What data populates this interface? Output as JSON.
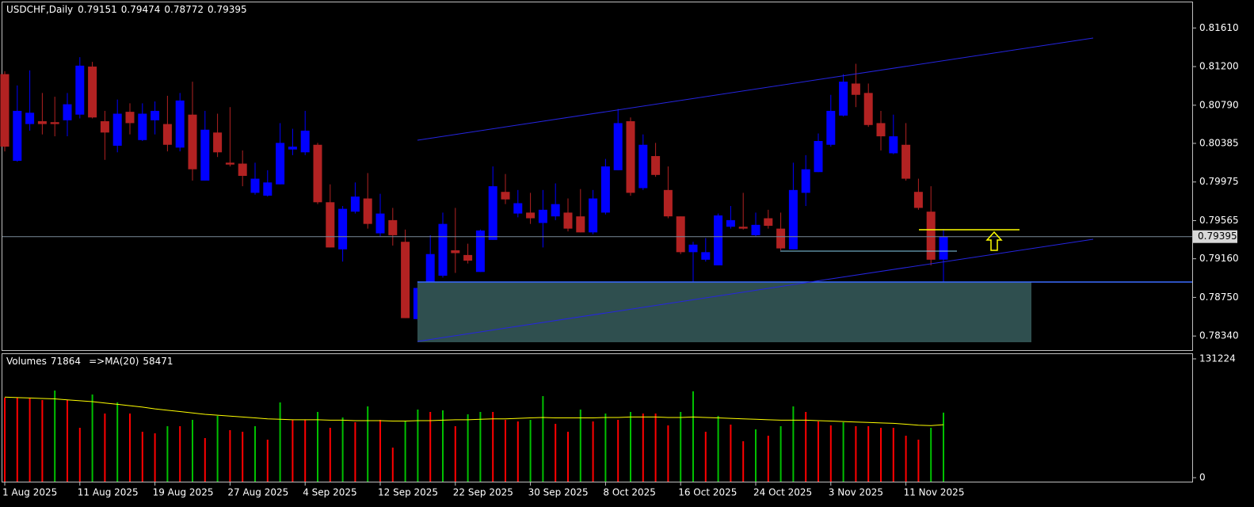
{
  "chart_data": [
    {
      "type": "candlestick",
      "title": "USDCHF,Daily",
      "categories": [
        "1 Aug 2025",
        null,
        null,
        null,
        null,
        null,
        "11 Aug 2025",
        null,
        null,
        null,
        null,
        null,
        "19 Aug 2025",
        null,
        null,
        null,
        null,
        null,
        "27 Aug 2025",
        null,
        null,
        null,
        null,
        null,
        "4 Sep 2025",
        null,
        null,
        null,
        null,
        null,
        "12 Sep 2025",
        null,
        null,
        null,
        null,
        null,
        "22 Sep 2025",
        null,
        null,
        null,
        null,
        null,
        "30 Sep 2025",
        null,
        null,
        null,
        null,
        null,
        "8 Oct 2025",
        null,
        null,
        null,
        null,
        null,
        "16 Oct 2025",
        null,
        null,
        null,
        null,
        null,
        "24 Oct 2025",
        null,
        null,
        null,
        null,
        null,
        "3 Nov 2025",
        null,
        null,
        null,
        null,
        null,
        "11 Nov 2025",
        null,
        null,
        null
      ],
      "open": [
        0.8112,
        0.802,
        0.8059,
        0.8062,
        0.8061,
        0.8063,
        0.8069,
        0.812,
        0.8062,
        0.8036,
        0.8072,
        0.8042,
        0.8063,
        0.8059,
        0.8034,
        0.8069,
        0.7999,
        0.805,
        0.8018,
        0.8017,
        0.7986,
        0.7983,
        0.7995,
        0.8032,
        0.8029,
        0.8037,
        0.7976,
        0.7926,
        0.7966,
        0.798,
        0.7943,
        0.7957,
        0.7934,
        0.7852,
        0.7873,
        0.7898,
        0.7925,
        0.792,
        0.7902,
        0.7936,
        0.7987,
        0.7964,
        0.7965,
        0.7954,
        0.7961,
        0.7965,
        0.7961,
        0.7944,
        0.7965,
        0.801,
        0.8062,
        0.7991,
        0.8025,
        0.7989,
        0.7961,
        0.7923,
        0.7915,
        0.7909,
        0.795,
        0.795,
        0.7941,
        0.7959,
        0.7948,
        0.7926,
        0.7986,
        0.8008,
        0.8037,
        0.8068,
        0.8102,
        0.8092,
        0.806,
        0.8028,
        0.8037,
        0.7987,
        0.7966,
        0.79151
      ],
      "high": [
        0.8115,
        0.81,
        0.8116,
        0.8092,
        0.8088,
        0.8092,
        0.813,
        0.8125,
        0.8073,
        0.8085,
        0.8081,
        0.8081,
        0.8083,
        0.8089,
        0.8092,
        0.8104,
        0.8073,
        0.807,
        0.8077,
        0.8031,
        0.8018,
        0.801,
        0.806,
        0.8054,
        0.8073,
        0.8039,
        0.7995,
        0.7972,
        0.7997,
        0.8007,
        0.7985,
        0.797,
        0.7947,
        0.7892,
        0.7941,
        0.7965,
        0.797,
        0.7932,
        0.7947,
        0.8014,
        0.8006,
        0.7989,
        0.7986,
        0.7989,
        0.7996,
        0.798,
        0.799,
        0.7989,
        0.8022,
        0.8075,
        0.8066,
        0.8048,
        0.8039,
        0.8014,
        0.7961,
        0.7934,
        0.7938,
        0.7964,
        0.7972,
        0.7986,
        0.7965,
        0.7968,
        0.7965,
        0.8018,
        0.8026,
        0.8049,
        0.809,
        0.8112,
        0.8123,
        0.8102,
        0.8073,
        0.8069,
        0.806,
        0.8001,
        0.7993,
        0.79474
      ],
      "low": [
        0.803,
        0.8019,
        0.8052,
        0.8048,
        0.8046,
        0.8046,
        0.8065,
        0.8065,
        0.8021,
        0.8029,
        0.8048,
        0.8041,
        0.8048,
        0.803,
        0.803,
        0.7999,
        0.7999,
        0.8024,
        0.8014,
        0.7993,
        0.7984,
        0.7982,
        0.7995,
        0.8026,
        0.8026,
        0.7974,
        0.7928,
        0.7913,
        0.7964,
        0.7948,
        0.794,
        0.793,
        0.7853,
        0.785,
        0.7871,
        0.7896,
        0.7901,
        0.7911,
        0.7902,
        0.7936,
        0.7974,
        0.796,
        0.7953,
        0.7928,
        0.7957,
        0.7945,
        0.7944,
        0.7942,
        0.7963,
        0.801,
        0.7983,
        0.7989,
        0.8003,
        0.7959,
        0.7921,
        0.7871,
        0.7913,
        0.7909,
        0.7948,
        0.7947,
        0.794,
        0.7948,
        0.7925,
        0.7926,
        0.7972,
        0.8008,
        0.8035,
        0.8067,
        0.8077,
        0.8056,
        0.8031,
        0.8027,
        0.7999,
        0.7968,
        0.7909,
        0.78772
      ],
      "close": [
        0.8035,
        0.8073,
        0.8071,
        0.8059,
        0.8059,
        0.808,
        0.8121,
        0.8066,
        0.805,
        0.807,
        0.806,
        0.807,
        0.8073,
        0.8037,
        0.8084,
        0.8011,
        0.8053,
        0.8029,
        0.8016,
        0.8004,
        0.8001,
        0.7997,
        0.8039,
        0.8035,
        0.8052,
        0.7976,
        0.7928,
        0.7969,
        0.7982,
        0.7953,
        0.7964,
        0.7941,
        0.7853,
        0.7885,
        0.7921,
        0.7953,
        0.7922,
        0.7914,
        0.7946,
        0.7993,
        0.7979,
        0.7975,
        0.7959,
        0.7968,
        0.7974,
        0.7948,
        0.7944,
        0.798,
        0.8014,
        0.806,
        0.7986,
        0.8037,
        0.8005,
        0.7961,
        0.7923,
        0.7931,
        0.7923,
        0.7962,
        0.7957,
        0.7948,
        0.7952,
        0.7951,
        0.7927,
        0.7989,
        0.8011,
        0.8041,
        0.8073,
        0.8104,
        0.809,
        0.8058,
        0.8046,
        0.8046,
        0.8001,
        0.797,
        0.7915,
        0.79395
      ],
      "up_color": "#0000ff",
      "down_color": "#b22222",
      "ylim": [
        0.7819,
        0.8189
      ],
      "yticks": [
        {
          "value": 0.8161,
          "label": "0.81610"
        },
        {
          "value": 0.812,
          "label": "0.81200"
        },
        {
          "value": 0.8079,
          "label": "0.80790"
        },
        0.80385,
        0.79975,
        0.79565,
        {
          "value": 0.7916,
          "label": "0.79160"
        },
        {
          "value": 0.7875,
          "label": "0.78750"
        },
        {
          "value": 0.7834,
          "label": "0.78340"
        }
      ]
    },
    {
      "type": "bar",
      "series": [
        {
          "name": "Volumes",
          "values": [
            88350,
            88350,
            88350,
            85730,
            96230,
            85730,
            55110,
            91850,
            70860,
            83110,
            70860,
            50740,
            48990,
            56860,
            56860,
            63860,
            43740,
            68230,
            52490,
            50740,
            56860,
            41990,
            83110,
            63860,
            63860,
            72610,
            55110,
            66480,
            61240,
            78730,
            63860,
            33240,
            62110,
            75230,
            72610,
            74360,
            56860,
            69980,
            72610,
            72610,
            63860,
            62110,
            63860,
            90100,
            59480,
            50740,
            75230,
            62110,
            70860,
            63860,
            72610,
            70860,
            70860,
            57740,
            72610,
            95350,
            50740,
            68230,
            58610,
            40240,
            53360,
            46360,
            56860,
            78730,
            72610,
            62110,
            57740,
            61240,
            56860,
            56860,
            55110,
            55110,
            46360,
            41990,
            55110,
            71864
          ]
        },
        {
          "name": "=>MA(20)",
          "color": "#ffff00",
          "values": [
            89000,
            88500,
            88000,
            87500,
            87000,
            86000,
            85000,
            84000,
            82500,
            81000,
            79500,
            78000,
            76000,
            74500,
            73000,
            71500,
            70000,
            69000,
            68000,
            67000,
            66000,
            65000,
            64500,
            64000,
            64000,
            64000,
            63500,
            63500,
            63000,
            63000,
            63000,
            62500,
            62500,
            63000,
            63000,
            63500,
            64000,
            64000,
            64500,
            65000,
            65000,
            65500,
            66000,
            66500,
            66000,
            66000,
            66000,
            66000,
            66500,
            66500,
            67000,
            67000,
            67000,
            66500,
            66500,
            67000,
            66500,
            66000,
            65500,
            65000,
            64500,
            64000,
            63500,
            63500,
            63500,
            63000,
            62500,
            62000,
            61500,
            61000,
            60500,
            60000,
            59000,
            58000,
            57500,
            58471
          ]
        }
      ],
      "up_color": "#00c000",
      "down_color": "#ff0000",
      "ylim": [
        0,
        131224
      ],
      "yticks": [
        0,
        131224
      ]
    }
  ]
}
